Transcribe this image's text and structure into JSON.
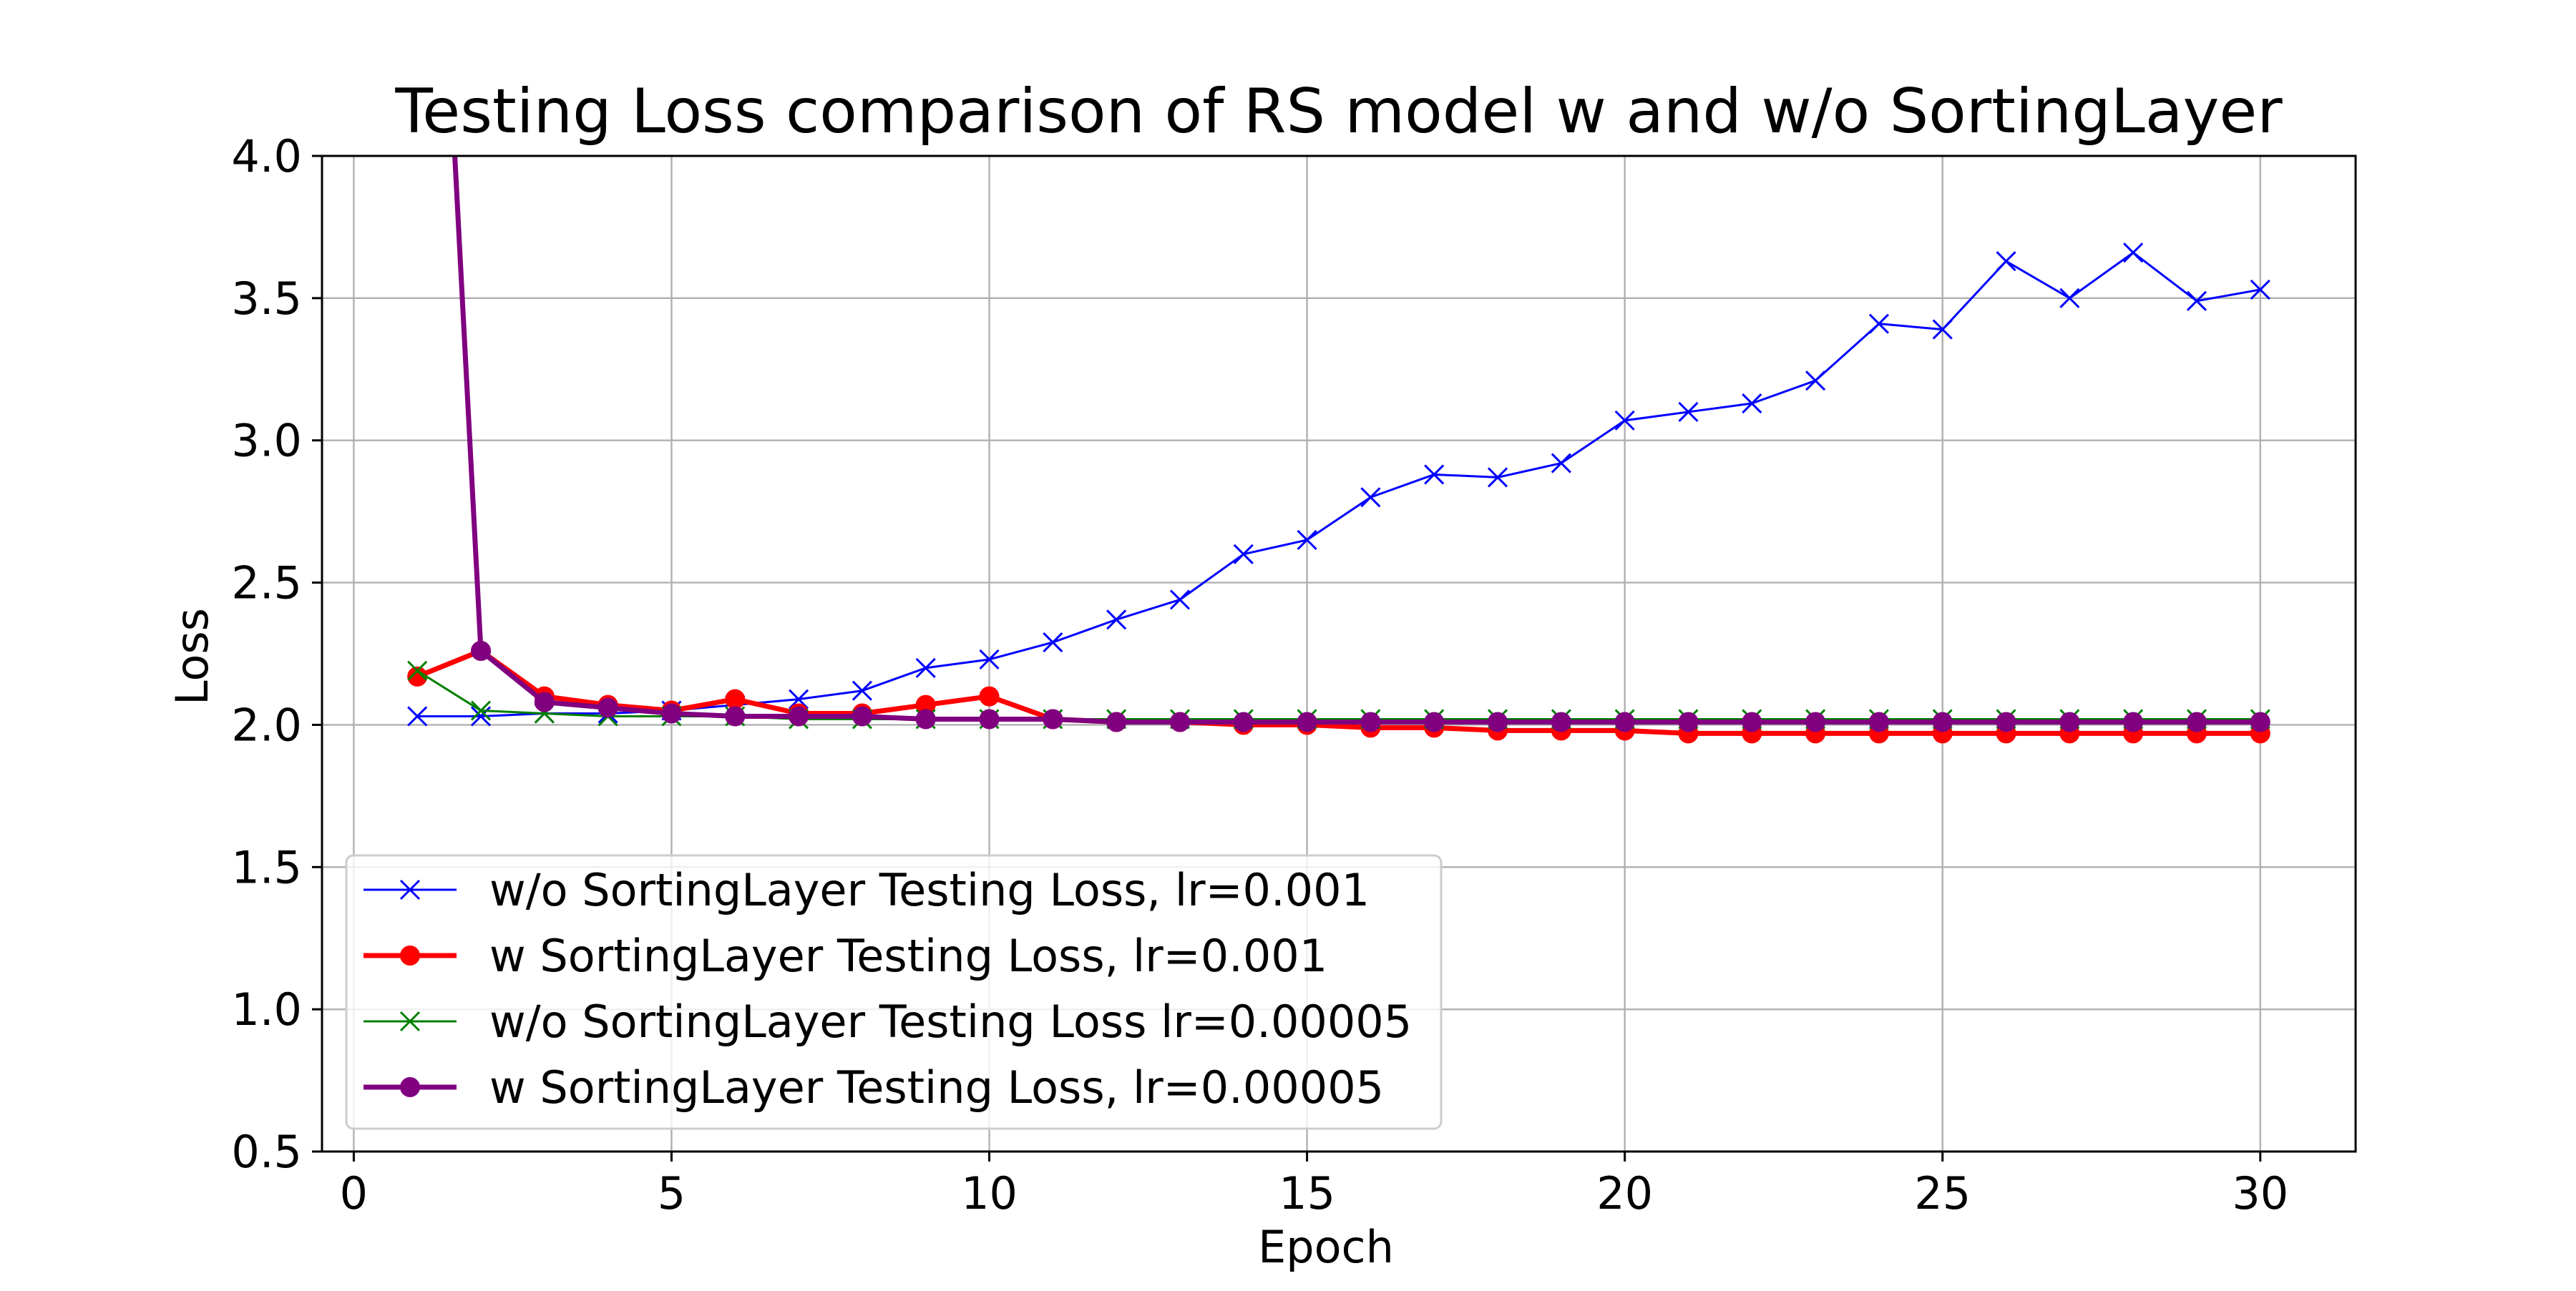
{
  "chart_data": {
    "type": "line",
    "title": "Testing Loss comparison of RS model w and w/o SortingLayer",
    "xlabel": "Epoch",
    "ylabel": "Loss",
    "xlim": [
      -0.5,
      31.5
    ],
    "ylim": [
      0.5,
      4.0
    ],
    "x_ticks": [
      0,
      5,
      10,
      15,
      20,
      25,
      30
    ],
    "y_ticks": [
      0.5,
      1.0,
      1.5,
      2.0,
      2.5,
      3.0,
      3.5,
      4.0
    ],
    "x_tick_labels": [
      "0",
      "5",
      "10",
      "15",
      "20",
      "25",
      "30"
    ],
    "y_tick_labels": [
      "0.5",
      "1.0",
      "1.5",
      "2.0",
      "2.5",
      "3.0",
      "3.5",
      "4.0"
    ],
    "grid": true,
    "legend_position": "lower-left",
    "x": [
      1,
      2,
      3,
      4,
      5,
      6,
      7,
      8,
      9,
      10,
      11,
      12,
      13,
      14,
      15,
      16,
      17,
      18,
      19,
      20,
      21,
      22,
      23,
      24,
      25,
      26,
      27,
      28,
      29,
      30
    ],
    "series": [
      {
        "name": "w/o SortingLayer Testing Loss, lr=0.001",
        "color": "#0000ff",
        "marker": "x",
        "line_style": "thin",
        "values": [
          2.03,
          2.03,
          2.04,
          2.04,
          2.05,
          2.07,
          2.09,
          2.12,
          2.2,
          2.23,
          2.29,
          2.37,
          2.44,
          2.6,
          2.65,
          2.8,
          2.88,
          2.87,
          2.92,
          3.07,
          3.1,
          3.13,
          3.21,
          3.41,
          3.39,
          3.63,
          3.5,
          3.66,
          3.49,
          3.53
        ]
      },
      {
        "name": "w SortingLayer Testing Loss, lr=0.001",
        "color": "#ff0000",
        "marker": "o",
        "line_style": "thick",
        "values": [
          2.17,
          2.26,
          2.1,
          2.07,
          2.05,
          2.09,
          2.04,
          2.04,
          2.07,
          2.1,
          2.02,
          2.01,
          2.01,
          2.0,
          2.0,
          1.99,
          1.99,
          1.98,
          1.98,
          1.98,
          1.97,
          1.97,
          1.97,
          1.97,
          1.97,
          1.97,
          1.97,
          1.97,
          1.97,
          1.97
        ]
      },
      {
        "name": "w/o SortingLayer Testing Loss lr=0.00005",
        "color": "#008000",
        "marker": "x",
        "line_style": "thin",
        "values": [
          2.19,
          2.05,
          2.04,
          2.03,
          2.03,
          2.03,
          2.02,
          2.02,
          2.02,
          2.02,
          2.02,
          2.02,
          2.02,
          2.02,
          2.02,
          2.02,
          2.02,
          2.02,
          2.02,
          2.02,
          2.02,
          2.02,
          2.02,
          2.02,
          2.02,
          2.02,
          2.02,
          2.02,
          2.02,
          2.02
        ]
      },
      {
        "name": "w SortingLayer Testing Loss, lr=0.00005",
        "color": "#800080",
        "marker": "o",
        "line_style": "thick",
        "values": [
          6.5,
          2.26,
          2.08,
          2.06,
          2.04,
          2.03,
          2.03,
          2.03,
          2.02,
          2.02,
          2.02,
          2.01,
          2.01,
          2.01,
          2.01,
          2.01,
          2.01,
          2.01,
          2.01,
          2.01,
          2.01,
          2.01,
          2.01,
          2.01,
          2.01,
          2.01,
          2.01,
          2.01,
          2.01,
          2.01
        ]
      }
    ]
  }
}
